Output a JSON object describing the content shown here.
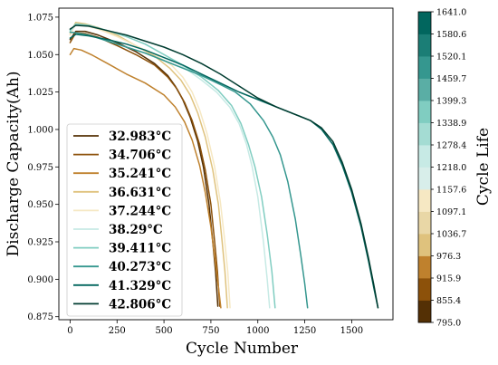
{
  "chart_data": {
    "type": "line",
    "xlabel": "Cycle Number",
    "ylabel": "Discharge Capacity(Ah)",
    "xlim": [
      -60,
      1720
    ],
    "ylim": [
      0.873,
      1.081
    ],
    "xticks": [
      0,
      250,
      500,
      750,
      1000,
      1250,
      1500
    ],
    "xtick_labels": [
      "0",
      "250",
      "500",
      "750",
      "1000",
      "1250",
      "1500"
    ],
    "yticks": [
      0.875,
      0.9,
      0.925,
      0.95,
      0.975,
      1.0,
      1.025,
      1.05,
      1.075
    ],
    "ytick_labels": [
      "0.875",
      "0.900",
      "0.925",
      "0.950",
      "0.975",
      "1.000",
      "1.025",
      "1.050",
      "1.075"
    ],
    "legend_position": "lower-left",
    "grid": false,
    "series": [
      {
        "name": "32.983°C",
        "color": "#543005",
        "points": [
          [
            0,
            1.06
          ],
          [
            30,
            1.0655
          ],
          [
            80,
            1.0655
          ],
          [
            150,
            1.063
          ],
          [
            250,
            1.058
          ],
          [
            350,
            1.052
          ],
          [
            450,
            1.044
          ],
          [
            520,
            1.036
          ],
          [
            560,
            1.029
          ],
          [
            600,
            1.02
          ],
          [
            640,
            1.008
          ],
          [
            680,
            0.992
          ],
          [
            710,
            0.975
          ],
          [
            740,
            0.95
          ],
          [
            760,
            0.925
          ],
          [
            775,
            0.905
          ],
          [
            787,
            0.882
          ]
        ]
      },
      {
        "name": "34.706°C",
        "color": "#8c510a",
        "points": [
          [
            0,
            1.058
          ],
          [
            30,
            1.0645
          ],
          [
            80,
            1.064
          ],
          [
            150,
            1.0615
          ],
          [
            250,
            1.056
          ],
          [
            350,
            1.05
          ],
          [
            450,
            1.043
          ],
          [
            520,
            1.035
          ],
          [
            570,
            1.027
          ],
          [
            610,
            1.018
          ],
          [
            650,
            1.006
          ],
          [
            690,
            0.99
          ],
          [
            720,
            0.973
          ],
          [
            750,
            0.95
          ],
          [
            770,
            0.925
          ],
          [
            785,
            0.905
          ],
          [
            797,
            0.882
          ]
        ]
      },
      {
        "name": "35.241°C",
        "color": "#bf812d",
        "points": [
          [
            0,
            1.05
          ],
          [
            20,
            1.054
          ],
          [
            60,
            1.053
          ],
          [
            120,
            1.0495
          ],
          [
            200,
            1.044
          ],
          [
            300,
            1.037
          ],
          [
            400,
            1.031
          ],
          [
            500,
            1.023
          ],
          [
            560,
            1.015
          ],
          [
            610,
            1.005
          ],
          [
            650,
            0.993
          ],
          [
            690,
            0.976
          ],
          [
            720,
            0.958
          ],
          [
            750,
            0.935
          ],
          [
            770,
            0.915
          ],
          [
            790,
            0.895
          ],
          [
            803,
            0.881
          ]
        ]
      },
      {
        "name": "36.631°C",
        "color": "#dfc27d",
        "points": [
          [
            0,
            1.064
          ],
          [
            30,
            1.0715
          ],
          [
            80,
            1.0705
          ],
          [
            150,
            1.068
          ],
          [
            250,
            1.063
          ],
          [
            350,
            1.056
          ],
          [
            450,
            1.049
          ],
          [
            530,
            1.041
          ],
          [
            590,
            1.033
          ],
          [
            640,
            1.023
          ],
          [
            680,
            1.011
          ],
          [
            720,
            0.995
          ],
          [
            760,
            0.973
          ],
          [
            790,
            0.95
          ],
          [
            810,
            0.925
          ],
          [
            825,
            0.905
          ],
          [
            838,
            0.881
          ]
        ]
      },
      {
        "name": "37.244°C",
        "color": "#f6e8c3",
        "points": [
          [
            0,
            1.063
          ],
          [
            30,
            1.0705
          ],
          [
            80,
            1.0695
          ],
          [
            150,
            1.067
          ],
          [
            250,
            1.062
          ],
          [
            350,
            1.056
          ],
          [
            450,
            1.05
          ],
          [
            540,
            1.043
          ],
          [
            600,
            1.035
          ],
          [
            650,
            1.025
          ],
          [
            690,
            1.013
          ],
          [
            730,
            0.997
          ],
          [
            770,
            0.975
          ],
          [
            800,
            0.952
          ],
          [
            820,
            0.93
          ],
          [
            840,
            0.905
          ],
          [
            852,
            0.881
          ]
        ]
      },
      {
        "name": "38.29°C",
        "color": "#c7eae5",
        "points": [
          [
            0,
            1.065
          ],
          [
            30,
            1.07
          ],
          [
            100,
            1.069
          ],
          [
            200,
            1.066
          ],
          [
            300,
            1.062
          ],
          [
            400,
            1.057
          ],
          [
            500,
            1.05
          ],
          [
            600,
            1.042
          ],
          [
            700,
            1.033
          ],
          [
            780,
            1.025
          ],
          [
            850,
            1.015
          ],
          [
            900,
            1.004
          ],
          [
            940,
            0.99
          ],
          [
            970,
            0.975
          ],
          [
            1000,
            0.955
          ],
          [
            1030,
            0.925
          ],
          [
            1050,
            0.9
          ],
          [
            1063,
            0.881
          ]
        ]
      },
      {
        "name": "39.411°C",
        "color": "#80cdc1",
        "points": [
          [
            0,
            1.066
          ],
          [
            30,
            1.0705
          ],
          [
            100,
            1.0695
          ],
          [
            200,
            1.066
          ],
          [
            300,
            1.062
          ],
          [
            400,
            1.057
          ],
          [
            500,
            1.05
          ],
          [
            600,
            1.043
          ],
          [
            700,
            1.035
          ],
          [
            790,
            1.026
          ],
          [
            860,
            1.016
          ],
          [
            910,
            1.004
          ],
          [
            950,
            0.99
          ],
          [
            985,
            0.975
          ],
          [
            1020,
            0.955
          ],
          [
            1050,
            0.93
          ],
          [
            1075,
            0.905
          ],
          [
            1092,
            0.881
          ]
        ]
      },
      {
        "name": "40.273°C",
        "color": "#35978f",
        "points": [
          [
            0,
            1.065
          ],
          [
            30,
            1.0645
          ],
          [
            100,
            1.063
          ],
          [
            200,
            1.059
          ],
          [
            300,
            1.055
          ],
          [
            400,
            1.051
          ],
          [
            500,
            1.046
          ],
          [
            600,
            1.041
          ],
          [
            700,
            1.036
          ],
          [
            800,
            1.03
          ],
          [
            880,
            1.025
          ],
          [
            960,
            1.017
          ],
          [
            1030,
            1.006
          ],
          [
            1080,
            0.995
          ],
          [
            1120,
            0.983
          ],
          [
            1160,
            0.965
          ],
          [
            1200,
            0.94
          ],
          [
            1230,
            0.915
          ],
          [
            1250,
            0.897
          ],
          [
            1265,
            0.881
          ]
        ]
      },
      {
        "name": "41.329°C",
        "color": "#01665e",
        "points": [
          [
            0,
            1.061
          ],
          [
            30,
            1.0635
          ],
          [
            100,
            1.0625
          ],
          [
            200,
            1.06
          ],
          [
            300,
            1.057
          ],
          [
            400,
            1.053
          ],
          [
            500,
            1.048
          ],
          [
            600,
            1.043
          ],
          [
            700,
            1.037
          ],
          [
            800,
            1.031
          ],
          [
            900,
            1.025
          ],
          [
            1000,
            1.02
          ],
          [
            1100,
            1.015
          ],
          [
            1200,
            1.01
          ],
          [
            1280,
            1.006
          ],
          [
            1340,
            1.0
          ],
          [
            1400,
            0.99
          ],
          [
            1450,
            0.976
          ],
          [
            1500,
            0.958
          ],
          [
            1550,
            0.935
          ],
          [
            1590,
            0.912
          ],
          [
            1620,
            0.893
          ],
          [
            1640,
            0.881
          ]
        ]
      },
      {
        "name": "42.806°C",
        "color": "#003c30",
        "points": [
          [
            0,
            1.067
          ],
          [
            30,
            1.0695
          ],
          [
            100,
            1.069
          ],
          [
            200,
            1.066
          ],
          [
            300,
            1.063
          ],
          [
            400,
            1.059
          ],
          [
            500,
            1.055
          ],
          [
            600,
            1.05
          ],
          [
            700,
            1.044
          ],
          [
            800,
            1.037
          ],
          [
            900,
            1.029
          ],
          [
            1000,
            1.021
          ],
          [
            1100,
            1.015
          ],
          [
            1200,
            1.01
          ],
          [
            1280,
            1.006
          ],
          [
            1340,
            1.001
          ],
          [
            1400,
            0.992
          ],
          [
            1450,
            0.978
          ],
          [
            1500,
            0.96
          ],
          [
            1550,
            0.937
          ],
          [
            1590,
            0.914
          ],
          [
            1620,
            0.895
          ],
          [
            1640,
            0.881
          ]
        ]
      }
    ],
    "colorbar": {
      "label": "Cycle Life",
      "tick_labels": [
        "795.0",
        "855.4",
        "915.9",
        "976.3",
        "1036.7",
        "1097.1",
        "1157.6",
        "1218.0",
        "1278.4",
        "1338.9",
        "1399.3",
        "1459.7",
        "1520.1",
        "1580.6",
        "1641.0"
      ],
      "segment_colors": [
        "#543005",
        "#8c510a",
        "#bf812d",
        "#dfc27d",
        "#e9d7a6",
        "#f6e8c3",
        "#d8eeea",
        "#c7eae5",
        "#a4dcd3",
        "#80cdc1",
        "#5aaea5",
        "#35978f",
        "#1b7e76",
        "#01665e"
      ]
    }
  }
}
